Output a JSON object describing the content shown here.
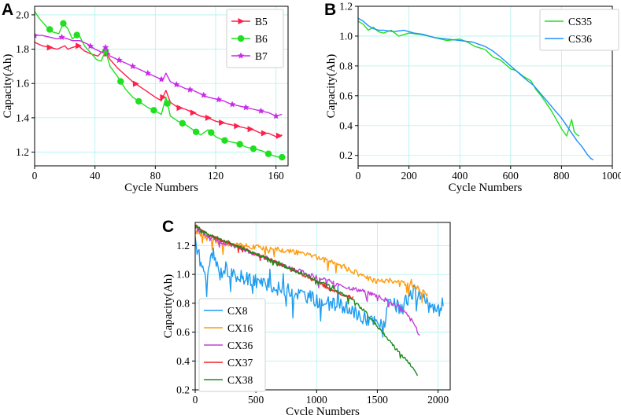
{
  "chart_data": [
    {
      "panel": "A",
      "type": "line",
      "xlabel": "Cycle Numbers",
      "ylabel": "Capacity(Ah)",
      "xlim": [
        0,
        168
      ],
      "ylim": [
        1.12,
        2.05
      ],
      "xticks": [
        0,
        40,
        80,
        120,
        160
      ],
      "yticks": [
        1.2,
        1.4,
        1.6,
        1.8,
        2.0
      ],
      "xtick_labels": [
        "0",
        "40",
        "80",
        "120",
        "160"
      ],
      "ytick_labels": [
        "1.2",
        "1.4",
        "1.6",
        "1.8",
        "2.0"
      ],
      "grid": true,
      "legend_position": "top-right",
      "series": [
        {
          "name": "B5",
          "color": "#ff1f4b",
          "marker": "triangle-right",
          "x": [
            0,
            5,
            10,
            15,
            20,
            22,
            25,
            29,
            33,
            38,
            42,
            44,
            47,
            50,
            55,
            60,
            65,
            70,
            75,
            80,
            84,
            87,
            90,
            95,
            100,
            105,
            110,
            115,
            120,
            125,
            130,
            135,
            140,
            145,
            150,
            155,
            160,
            164
          ],
          "y": [
            1.84,
            1.82,
            1.81,
            1.8,
            1.82,
            1.8,
            1.81,
            1.82,
            1.79,
            1.77,
            1.76,
            1.78,
            1.79,
            1.74,
            1.69,
            1.65,
            1.61,
            1.58,
            1.55,
            1.52,
            1.5,
            1.56,
            1.49,
            1.46,
            1.45,
            1.43,
            1.41,
            1.4,
            1.38,
            1.37,
            1.36,
            1.35,
            1.34,
            1.33,
            1.31,
            1.31,
            1.29,
            1.3
          ],
          "marker_x": [
            10,
            29,
            48,
            67,
            85,
            96,
            105,
            115,
            124,
            134,
            143,
            152,
            162
          ]
        },
        {
          "name": "B6",
          "color": "#1ee01e",
          "marker": "circle",
          "x": [
            0,
            3,
            8,
            12,
            16,
            19,
            22,
            25,
            29,
            33,
            37,
            41,
            44,
            47,
            50,
            55,
            60,
            65,
            70,
            75,
            80,
            84,
            87,
            90,
            95,
            100,
            105,
            110,
            115,
            120,
            125,
            130,
            135,
            140,
            145,
            150,
            155,
            158,
            162,
            165
          ],
          "y": [
            2.02,
            1.98,
            1.93,
            1.9,
            1.89,
            1.95,
            1.92,
            1.86,
            1.89,
            1.82,
            1.78,
            1.74,
            1.73,
            1.79,
            1.7,
            1.64,
            1.57,
            1.52,
            1.49,
            1.46,
            1.44,
            1.42,
            1.52,
            1.41,
            1.38,
            1.36,
            1.33,
            1.3,
            1.33,
            1.29,
            1.27,
            1.26,
            1.25,
            1.23,
            1.22,
            1.21,
            1.19,
            1.18,
            1.17,
            1.17
          ],
          "marker_x": [
            10,
            19,
            28,
            47,
            57,
            69,
            79,
            88,
            98,
            107,
            117,
            126,
            136,
            145,
            155,
            164
          ]
        },
        {
          "name": "B7",
          "color": "#c82be8",
          "marker": "star",
          "x": [
            0,
            5,
            10,
            15,
            18,
            22,
            25,
            30,
            35,
            40,
            45,
            47,
            50,
            55,
            60,
            65,
            70,
            75,
            80,
            85,
            87,
            90,
            95,
            100,
            105,
            110,
            115,
            120,
            125,
            130,
            135,
            140,
            145,
            150,
            155,
            160,
            164
          ],
          "y": [
            1.88,
            1.88,
            1.87,
            1.86,
            1.87,
            1.86,
            1.85,
            1.85,
            1.83,
            1.8,
            1.78,
            1.81,
            1.76,
            1.74,
            1.72,
            1.7,
            1.68,
            1.66,
            1.64,
            1.62,
            1.66,
            1.61,
            1.59,
            1.57,
            1.56,
            1.54,
            1.52,
            1.51,
            1.5,
            1.48,
            1.47,
            1.46,
            1.45,
            1.44,
            1.43,
            1.41,
            1.42
          ],
          "marker_x": [
            0,
            18,
            37,
            47,
            56,
            65,
            75,
            84,
            94,
            103,
            112,
            122,
            131,
            140,
            150,
            160
          ]
        }
      ]
    },
    {
      "panel": "B",
      "type": "line",
      "xlabel": "Cycle Numbers",
      "ylabel": "Capacity(Ah)",
      "xlim": [
        0,
        1000
      ],
      "ylim": [
        0.13,
        1.2
      ],
      "xticks": [
        0,
        200,
        400,
        600,
        800,
        1000
      ],
      "yticks": [
        0.2,
        0.4,
        0.6,
        0.8,
        1.0,
        1.2
      ],
      "xtick_labels": [
        "0",
        "200",
        "400",
        "600",
        "800",
        "1000"
      ],
      "ytick_labels": [
        "0.2",
        "0.4",
        "0.6",
        "0.8",
        "1.0",
        "1.2"
      ],
      "grid": true,
      "legend_position": "top-right",
      "series": [
        {
          "name": "CS35",
          "color": "#1ee01e",
          "x": [
            0,
            20,
            40,
            60,
            80,
            100,
            130,
            160,
            200,
            250,
            300,
            350,
            400,
            430,
            460,
            500,
            530,
            560,
            600,
            620,
            650,
            680,
            700,
            720,
            740,
            760,
            780,
            800,
            820,
            840,
            850,
            860,
            870
          ],
          "y": [
            1.1,
            1.08,
            1.04,
            1.06,
            1.03,
            1.02,
            1.04,
            1.0,
            1.02,
            1.01,
            0.99,
            0.97,
            0.98,
            0.96,
            0.93,
            0.91,
            0.86,
            0.84,
            0.78,
            0.77,
            0.73,
            0.7,
            0.64,
            0.6,
            0.55,
            0.5,
            0.44,
            0.38,
            0.33,
            0.44,
            0.36,
            0.34,
            0.33
          ]
        },
        {
          "name": "CS36",
          "color": "#1e90ff",
          "x": [
            0,
            20,
            40,
            60,
            80,
            100,
            140,
            180,
            220,
            260,
            300,
            350,
            400,
            450,
            500,
            530,
            560,
            600,
            640,
            660,
            690,
            720,
            750,
            780,
            800,
            820,
            840,
            860,
            880,
            900,
            915,
            925
          ],
          "y": [
            1.12,
            1.1,
            1.07,
            1.05,
            1.04,
            1.04,
            1.03,
            1.04,
            1.02,
            1.01,
            0.99,
            0.98,
            0.97,
            0.96,
            0.93,
            0.9,
            0.86,
            0.8,
            0.74,
            0.71,
            0.67,
            0.61,
            0.55,
            0.49,
            0.45,
            0.4,
            0.35,
            0.3,
            0.26,
            0.21,
            0.18,
            0.17
          ]
        }
      ]
    },
    {
      "panel": "C",
      "type": "line",
      "xlabel": "Cycle Numbers",
      "ylabel": "Capacity(Ah)",
      "xlim": [
        0,
        2100
      ],
      "ylim": [
        0.2,
        1.36
      ],
      "xticks": [
        0,
        500,
        1000,
        1500,
        2000
      ],
      "yticks": [
        0.2,
        0.4,
        0.6,
        0.8,
        1.0,
        1.2
      ],
      "xtick_labels": [
        "0",
        "500",
        "1000",
        "1500",
        "2000"
      ],
      "ytick_labels": [
        "0.2",
        "0.4",
        "0.6",
        "0.8",
        "1.0",
        "1.2"
      ],
      "grid": true,
      "legend_position": "bottom-left",
      "series": [
        {
          "name": "CX8",
          "color": "#1e9cf0",
          "x": [
            0,
            50,
            100,
            150,
            200,
            250,
            300,
            400,
            500,
            600,
            700,
            800,
            900,
            1000,
            1100,
            1200,
            1300,
            1400,
            1500,
            1550,
            1600,
            1700,
            1800,
            1900,
            1950,
            2000,
            2050
          ],
          "y": [
            1.25,
            1.05,
            1.0,
            1.15,
            1.0,
            1.05,
            1.0,
            0.98,
            0.96,
            0.92,
            0.9,
            0.88,
            0.86,
            0.82,
            0.8,
            0.78,
            0.74,
            0.7,
            0.66,
            0.64,
            0.8,
            0.76,
            0.9,
            0.8,
            0.76,
            0.75,
            0.73
          ],
          "noise": 0.1
        },
        {
          "name": "CX16",
          "color": "#ff9a0e",
          "x": [
            0,
            100,
            200,
            300,
            400,
            500,
            600,
            700,
            800,
            900,
            1000,
            1100,
            1200,
            1300,
            1400,
            1500,
            1600,
            1700,
            1800,
            1880,
            1920
          ],
          "y": [
            1.3,
            1.25,
            1.22,
            1.21,
            1.2,
            1.19,
            1.18,
            1.17,
            1.16,
            1.14,
            1.12,
            1.09,
            1.06,
            1.02,
            0.98,
            0.95,
            0.96,
            0.94,
            0.92,
            0.88,
            0.82
          ],
          "noise": 0.035
        },
        {
          "name": "CX36",
          "color": "#c440d8",
          "x": [
            0,
            100,
            200,
            300,
            400,
            500,
            600,
            700,
            800,
            900,
            1000,
            1100,
            1200,
            1300,
            1400,
            1500,
            1600,
            1700,
            1800,
            1850
          ],
          "y": [
            1.32,
            1.27,
            1.23,
            1.2,
            1.17,
            1.14,
            1.11,
            1.07,
            1.04,
            1.01,
            0.98,
            0.95,
            0.92,
            0.9,
            0.88,
            0.85,
            0.81,
            0.76,
            0.66,
            0.58
          ],
          "noise": 0.03
        },
        {
          "name": "CX37",
          "color": "#ee2222",
          "x": [
            0,
            100,
            200,
            300,
            400,
            500,
            600,
            700,
            800,
            900,
            1000,
            1100,
            1200,
            1300
          ],
          "y": [
            1.34,
            1.28,
            1.24,
            1.21,
            1.18,
            1.14,
            1.11,
            1.07,
            1.03,
            0.99,
            0.95,
            0.9,
            0.86,
            0.84
          ],
          "noise": 0.02
        },
        {
          "name": "CX38",
          "color": "#1e8a1e",
          "x": [
            0,
            100,
            200,
            300,
            400,
            500,
            600,
            700,
            800,
            900,
            1000,
            1100,
            1200,
            1300,
            1400,
            1500,
            1600,
            1700,
            1800,
            1830
          ],
          "y": [
            1.34,
            1.28,
            1.24,
            1.21,
            1.18,
            1.14,
            1.11,
            1.07,
            1.03,
            1.0,
            0.96,
            0.92,
            0.87,
            0.82,
            0.74,
            0.64,
            0.54,
            0.44,
            0.35,
            0.29
          ],
          "noise": 0.02
        }
      ]
    }
  ]
}
